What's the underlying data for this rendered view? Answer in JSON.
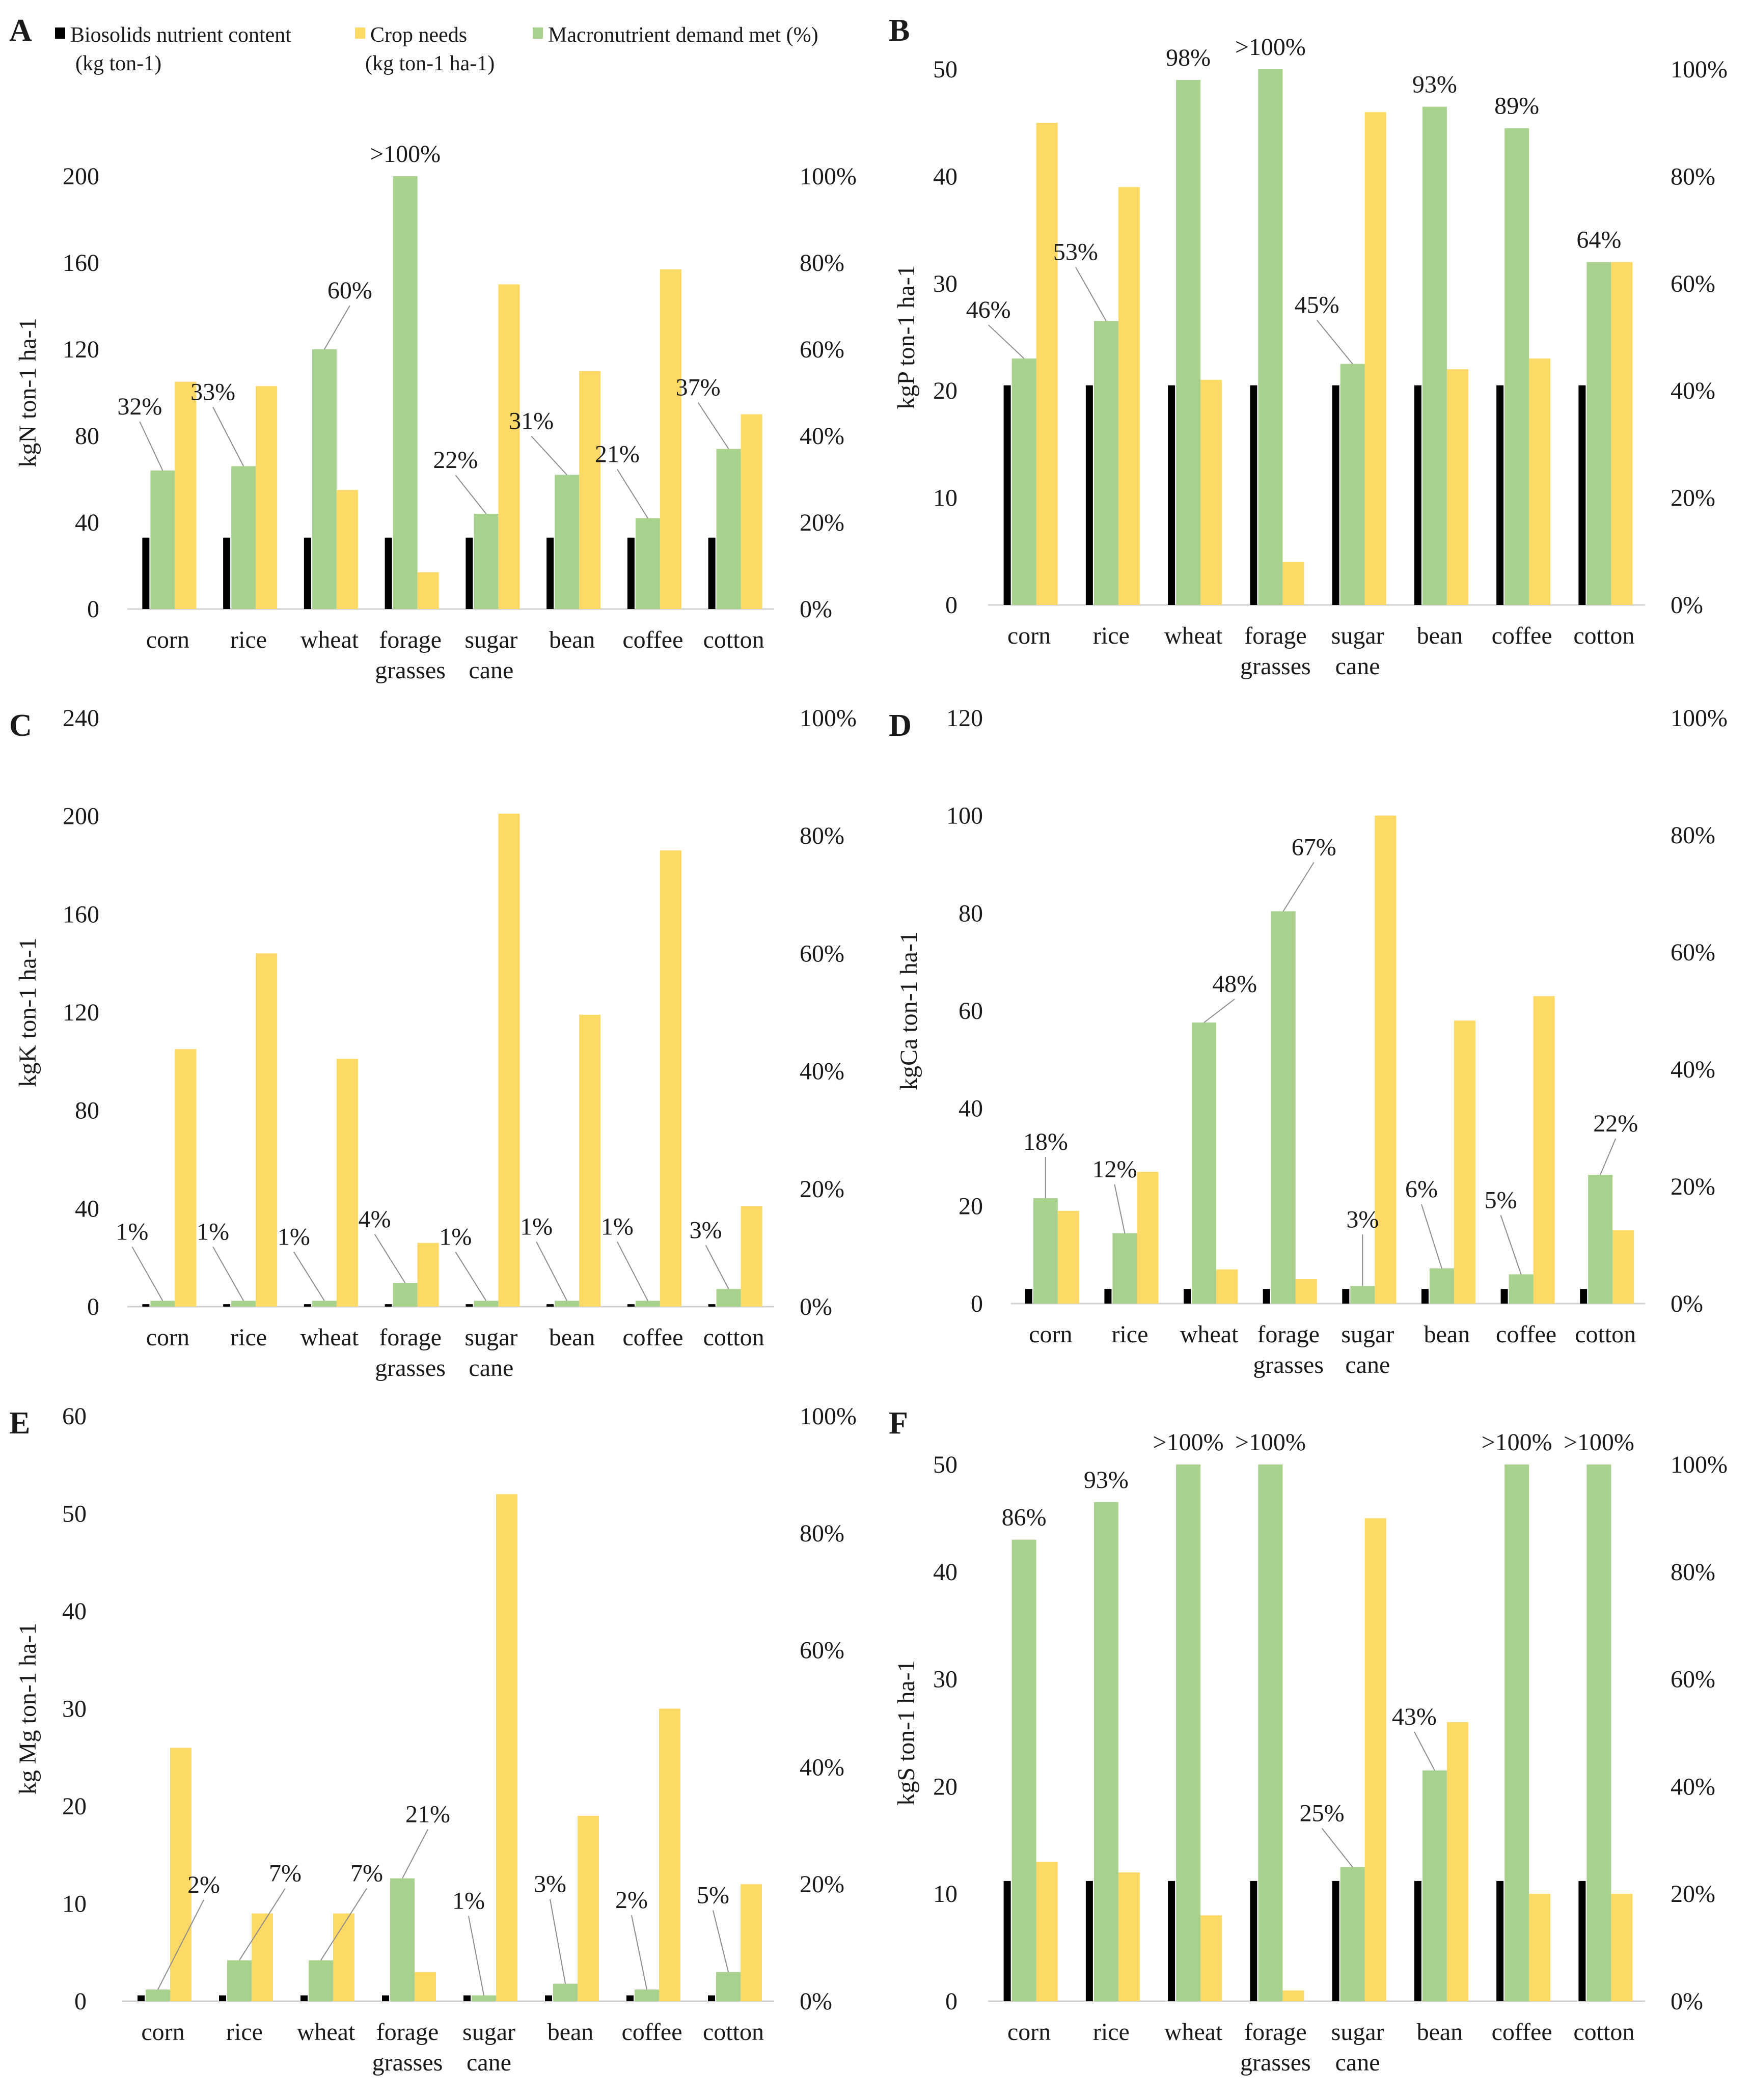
{
  "categories": [
    [
      "corn"
    ],
    [
      "rice"
    ],
    [
      "wheat"
    ],
    [
      "forage",
      "grasses"
    ],
    [
      "sugar",
      "cane"
    ],
    [
      "bean"
    ],
    [
      "coffee"
    ],
    [
      "cotton"
    ]
  ],
  "colors": {
    "biosolids": "#000000",
    "crop": "#FFD966",
    "demand": "#A9D18E",
    "leader": "#8c8c8c"
  },
  "legend": {
    "biosolids": [
      "Biosolids nutrient content",
      "(kg ton-1)"
    ],
    "crop": [
      "Crop needs",
      "(kg ton-1 ha-1)"
    ],
    "demand": [
      "Macronutrient demand met (%)"
    ]
  },
  "chart_data": [
    {
      "panel": "A",
      "type": "bar",
      "ylabel": "kgN ton-1 ha-1",
      "ylim": [
        0,
        200
      ],
      "yticks": [
        0,
        40,
        80,
        120,
        160,
        200
      ],
      "y2lim": [
        0,
        100
      ],
      "y2ticks": [
        "0%",
        "20%",
        "40%",
        "60%",
        "80%",
        "100%"
      ],
      "series": [
        {
          "name": "Biosolids nutrient content (kg ton-1)",
          "axis": "left",
          "values": [
            33,
            33,
            33,
            33,
            33,
            33,
            33,
            33
          ]
        },
        {
          "name": "Crop needs (kg ton-1 ha-1)",
          "axis": "left",
          "values": [
            105,
            103,
            55,
            17,
            150,
            110,
            157,
            90
          ]
        },
        {
          "name": "Macronutrient demand met (%)",
          "axis": "right",
          "values": [
            32,
            33,
            60,
            100,
            22,
            31,
            21,
            37
          ]
        }
      ],
      "labels": [
        "32%",
        "33%",
        "60%",
        ">100%",
        "22%",
        "31%",
        "21%",
        "37%"
      ]
    },
    {
      "panel": "B",
      "type": "bar",
      "ylabel": "kgP ton-1 ha-1",
      "ylim": [
        0,
        50
      ],
      "yticks": [
        0,
        10,
        20,
        30,
        40,
        50
      ],
      "y2lim": [
        0,
        100
      ],
      "y2ticks": [
        "0%",
        "20%",
        "40%",
        "60%",
        "80%",
        "100%"
      ],
      "series": [
        {
          "name": "Biosolids nutrient content (kg ton-1)",
          "axis": "left",
          "values": [
            20.5,
            20.5,
            20.5,
            20.5,
            20.5,
            20.5,
            20.5,
            20.5
          ]
        },
        {
          "name": "Crop needs (kg ton-1 ha-1)",
          "axis": "left",
          "values": [
            45,
            39,
            21,
            4,
            46,
            22,
            23,
            32
          ]
        },
        {
          "name": "Macronutrient demand met (%)",
          "axis": "right",
          "values": [
            46,
            53,
            98,
            100,
            45,
            93,
            89,
            64
          ]
        }
      ],
      "labels": [
        "46%",
        "53%",
        "98%",
        ">100%",
        "45%",
        "93%",
        "89%",
        "64%"
      ]
    },
    {
      "panel": "C",
      "type": "bar",
      "ylabel": "kgK ton-1 ha-1",
      "ylim": [
        0,
        240
      ],
      "yticks": [
        0,
        40,
        80,
        120,
        160,
        200,
        240
      ],
      "y2lim": [
        0,
        100
      ],
      "y2ticks": [
        "0%",
        "20%",
        "40%",
        "60%",
        "80%",
        "100%"
      ],
      "series": [
        {
          "name": "Biosolids nutrient content (kg ton-1)",
          "axis": "left",
          "values": [
            1,
            1,
            1,
            1,
            1,
            1,
            1,
            1
          ]
        },
        {
          "name": "Crop needs (kg ton-1 ha-1)",
          "axis": "left",
          "values": [
            105,
            144,
            101,
            26,
            201,
            119,
            186,
            41
          ]
        },
        {
          "name": "Macronutrient demand met (%)",
          "axis": "right",
          "values": [
            1,
            1,
            1,
            4,
            1,
            1,
            1,
            3
          ]
        }
      ],
      "labels": [
        "1%",
        "1%",
        "1%",
        "4%",
        "1%",
        "1%",
        "1%",
        "3%"
      ]
    },
    {
      "panel": "D",
      "type": "bar",
      "ylabel": "kgCa ton-1 ha-1",
      "ylim": [
        0,
        120
      ],
      "yticks": [
        0,
        20,
        40,
        60,
        80,
        100,
        120
      ],
      "y2lim": [
        0,
        100
      ],
      "y2ticks": [
        "0%",
        "20%",
        "40%",
        "60%",
        "80%",
        "100%"
      ],
      "series": [
        {
          "name": "Biosolids nutrient content (kg ton-1)",
          "axis": "left",
          "values": [
            3,
            3,
            3,
            3,
            3,
            3,
            3,
            3
          ]
        },
        {
          "name": "Crop needs (kg ton-1 ha-1)",
          "axis": "left",
          "values": [
            19,
            27,
            7,
            5,
            100,
            58,
            63,
            15
          ]
        },
        {
          "name": "Macronutrient demand met (%)",
          "axis": "right",
          "values": [
            18,
            12,
            48,
            67,
            3,
            6,
            5,
            22
          ]
        }
      ],
      "labels": [
        "18%",
        "12%",
        "48%",
        "67%",
        "3%",
        "6%",
        "5%",
        "22%"
      ]
    },
    {
      "panel": "E",
      "type": "bar",
      "ylabel": "kg Mg ton-1 ha-1",
      "ylim": [
        0,
        60
      ],
      "yticks": [
        0,
        10,
        20,
        30,
        40,
        50,
        60
      ],
      "y2lim": [
        0,
        100
      ],
      "y2ticks": [
        "0%",
        "20%",
        "40%",
        "60%",
        "80%",
        "100%"
      ],
      "series": [
        {
          "name": "Biosolids nutrient content (kg ton-1)",
          "axis": "left",
          "values": [
            0.6,
            0.6,
            0.6,
            0.6,
            0.6,
            0.6,
            0.6,
            0.6
          ]
        },
        {
          "name": "Crop needs (kg ton-1 ha-1)",
          "axis": "left",
          "values": [
            26,
            9,
            9,
            3,
            52,
            19,
            30,
            12
          ]
        },
        {
          "name": "Macronutrient demand met (%)",
          "axis": "right",
          "values": [
            2,
            7,
            7,
            21,
            1,
            3,
            2,
            5
          ]
        }
      ],
      "labels": [
        "2%",
        "7%",
        "7%",
        "21%",
        "1%",
        "3%",
        "2%",
        "5%"
      ]
    },
    {
      "panel": "F",
      "type": "bar",
      "ylabel": "kgS ton-1 ha-1",
      "ylim": [
        0,
        50
      ],
      "yticks": [
        0,
        10,
        20,
        30,
        40,
        50
      ],
      "y2lim": [
        0,
        100
      ],
      "y2ticks": [
        "0%",
        "20%",
        "40%",
        "60%",
        "80%",
        "100%"
      ],
      "series": [
        {
          "name": "Biosolids nutrient content (kg ton-1)",
          "axis": "left",
          "values": [
            11.2,
            11.2,
            11.2,
            11.2,
            11.2,
            11.2,
            11.2,
            11.2
          ]
        },
        {
          "name": "Crop needs (kg ton-1 ha-1)",
          "axis": "left",
          "values": [
            13,
            12,
            8,
            1,
            45,
            26,
            10,
            10
          ]
        },
        {
          "name": "Macronutrient demand met (%)",
          "axis": "right",
          "values": [
            86,
            93,
            100,
            100,
            25,
            43,
            100,
            100
          ]
        }
      ],
      "labels": [
        "86%",
        "93%",
        ">100%",
        ">100%",
        "25%",
        "43%",
        ">100%",
        ">100%"
      ]
    }
  ]
}
